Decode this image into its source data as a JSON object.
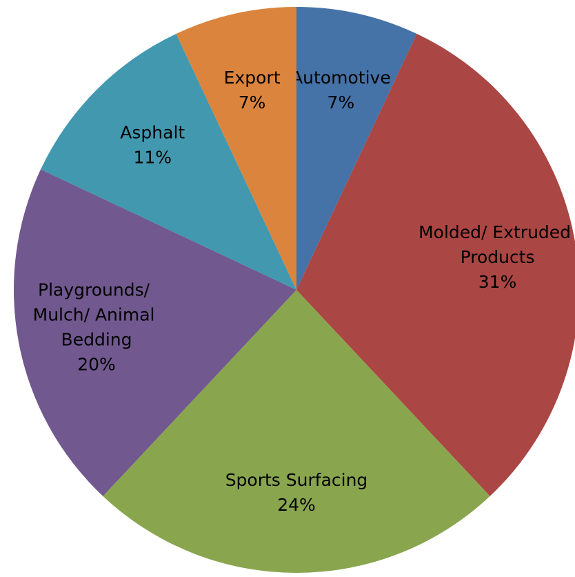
{
  "chart_data": {
    "type": "pie",
    "categories": [
      "Automotive",
      "Molded/ Extruded Products",
      "Sports Surfacing",
      "Playgrounds/ Mulch/ Animal Bedding",
      "Asphalt",
      "Export"
    ],
    "values": [
      7,
      31,
      24,
      20,
      11,
      7
    ],
    "value_labels": [
      "7%",
      "31%",
      "24%",
      "20%",
      "11%",
      "7%"
    ],
    "colors": [
      "#4572a7",
      "#aa4643",
      "#89a54e",
      "#71588f",
      "#4198af",
      "#db843d"
    ]
  }
}
